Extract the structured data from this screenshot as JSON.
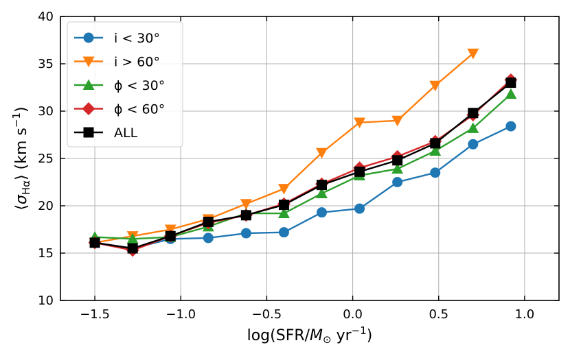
{
  "chart_data": {
    "type": "line",
    "xlabel": "log(SFR/M_⊙ yr^−1)",
    "ylabel": "⟨σ_Hα⟩ (km s^−1)",
    "xlim": [
      -1.7,
      1.2
    ],
    "ylim": [
      10,
      40
    ],
    "xticks": [
      -1.5,
      -1.0,
      -0.5,
      0.0,
      0.5,
      1.0
    ],
    "xtick_labels": [
      "−1.5",
      "−1.0",
      "−0.5",
      "0.0",
      "0.5",
      "1.0"
    ],
    "yticks": [
      10,
      15,
      20,
      25,
      30,
      35,
      40
    ],
    "ytick_labels": [
      "10",
      "15",
      "20",
      "25",
      "30",
      "35",
      "40"
    ],
    "grid": true,
    "legend_position": "top-left",
    "series": [
      {
        "name": "i < 30°",
        "color": "#1f77b4",
        "marker": "circle",
        "x": [
          -1.5,
          -1.28,
          -1.06,
          -0.84,
          -0.62,
          -0.4,
          -0.18,
          0.04,
          0.26,
          0.48,
          0.7,
          0.92
        ],
        "y": [
          16.1,
          15.5,
          16.5,
          16.6,
          17.1,
          17.2,
          19.3,
          19.7,
          22.5,
          23.5,
          26.5,
          28.4
        ]
      },
      {
        "name": "i > 60°",
        "color": "#ff7f0e",
        "marker": "triangle-down",
        "x": [
          -1.5,
          -1.28,
          -1.06,
          -0.84,
          -0.62,
          -0.4,
          -0.18,
          0.04,
          0.26,
          0.48,
          0.7
        ],
        "y": [
          16.1,
          16.8,
          17.5,
          18.6,
          20.2,
          21.8,
          25.6,
          28.8,
          29.0,
          32.7,
          36.1
        ]
      },
      {
        "name": "ϕ < 30°",
        "color": "#2ca02c",
        "marker": "triangle-up",
        "x": [
          -1.5,
          -1.28,
          -1.06,
          -0.84,
          -0.62,
          -0.4,
          -0.18,
          0.04,
          0.26,
          0.48,
          0.7,
          0.92
        ],
        "y": [
          16.7,
          16.5,
          16.7,
          17.8,
          19.2,
          19.2,
          21.3,
          23.2,
          23.9,
          25.8,
          28.2,
          31.8
        ]
      },
      {
        "name": "ϕ < 60°",
        "color": "#d62728",
        "marker": "diamond",
        "x": [
          -1.5,
          -1.28,
          -1.06,
          -0.84,
          -0.62,
          -0.4,
          -0.18,
          0.04,
          0.26,
          0.48,
          0.7,
          0.92
        ],
        "y": [
          16.1,
          15.3,
          16.8,
          18.2,
          19.0,
          20.2,
          22.3,
          24.0,
          25.2,
          26.8,
          29.6,
          33.3
        ]
      },
      {
        "name": "ALL",
        "color": "#000000",
        "marker": "square",
        "x": [
          -1.5,
          -1.28,
          -1.06,
          -0.84,
          -0.62,
          -0.4,
          -0.18,
          0.04,
          0.26,
          0.48,
          0.7,
          0.92
        ],
        "y": [
          16.1,
          15.5,
          16.8,
          18.3,
          19.0,
          20.1,
          22.2,
          23.6,
          24.8,
          26.6,
          29.8,
          33.0
        ]
      }
    ]
  }
}
